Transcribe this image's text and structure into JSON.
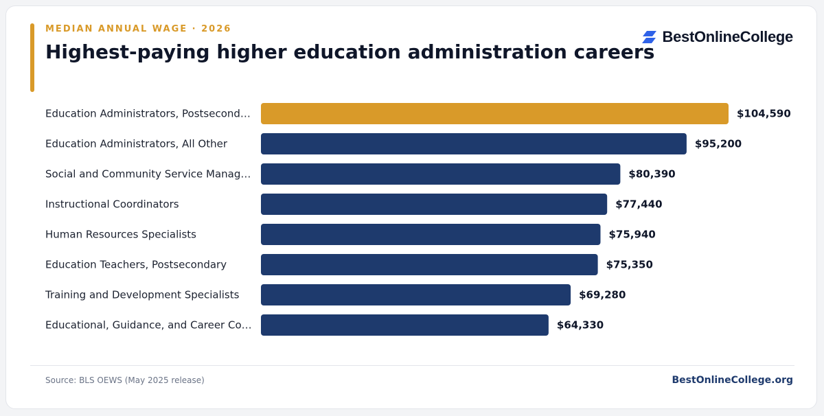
{
  "header": {
    "eyebrow": "MEDIAN ANNUAL WAGE · 2026",
    "title": "Highest-paying higher education administration careers"
  },
  "brand": {
    "logo_text": "BestOnlineCollege",
    "logo_icon": "stacked-parallelogram-icon",
    "site": "BestOnlineCollege.org"
  },
  "footer": {
    "source": "Source: BLS OEWS (May 2025 release)"
  },
  "colors": {
    "accent": "#d99a29",
    "navy": "#1e3a6d",
    "logo_blue": "#2f62e8"
  },
  "chart_data": {
    "type": "bar",
    "orientation": "horizontal",
    "categories": [
      "Education Administrators, Postsecond…",
      "Education Administrators, All Other",
      "Social and Community Service Manag…",
      "Instructional Coordinators",
      "Human Resources Specialists",
      "Education Teachers, Postsecondary",
      "Training and Development Specialists",
      "Educational, Guidance, and Career Co…"
    ],
    "values": [
      104590,
      95200,
      80390,
      77440,
      75940,
      75350,
      69280,
      64330
    ],
    "value_labels": [
      "$104,590",
      "$95,200",
      "$80,390",
      "$77,440",
      "$75,940",
      "$75,350",
      "$69,280",
      "$64,330"
    ],
    "highlight_index": 0,
    "xlim": [
      0,
      104590
    ],
    "grid": false,
    "legend": "none"
  }
}
